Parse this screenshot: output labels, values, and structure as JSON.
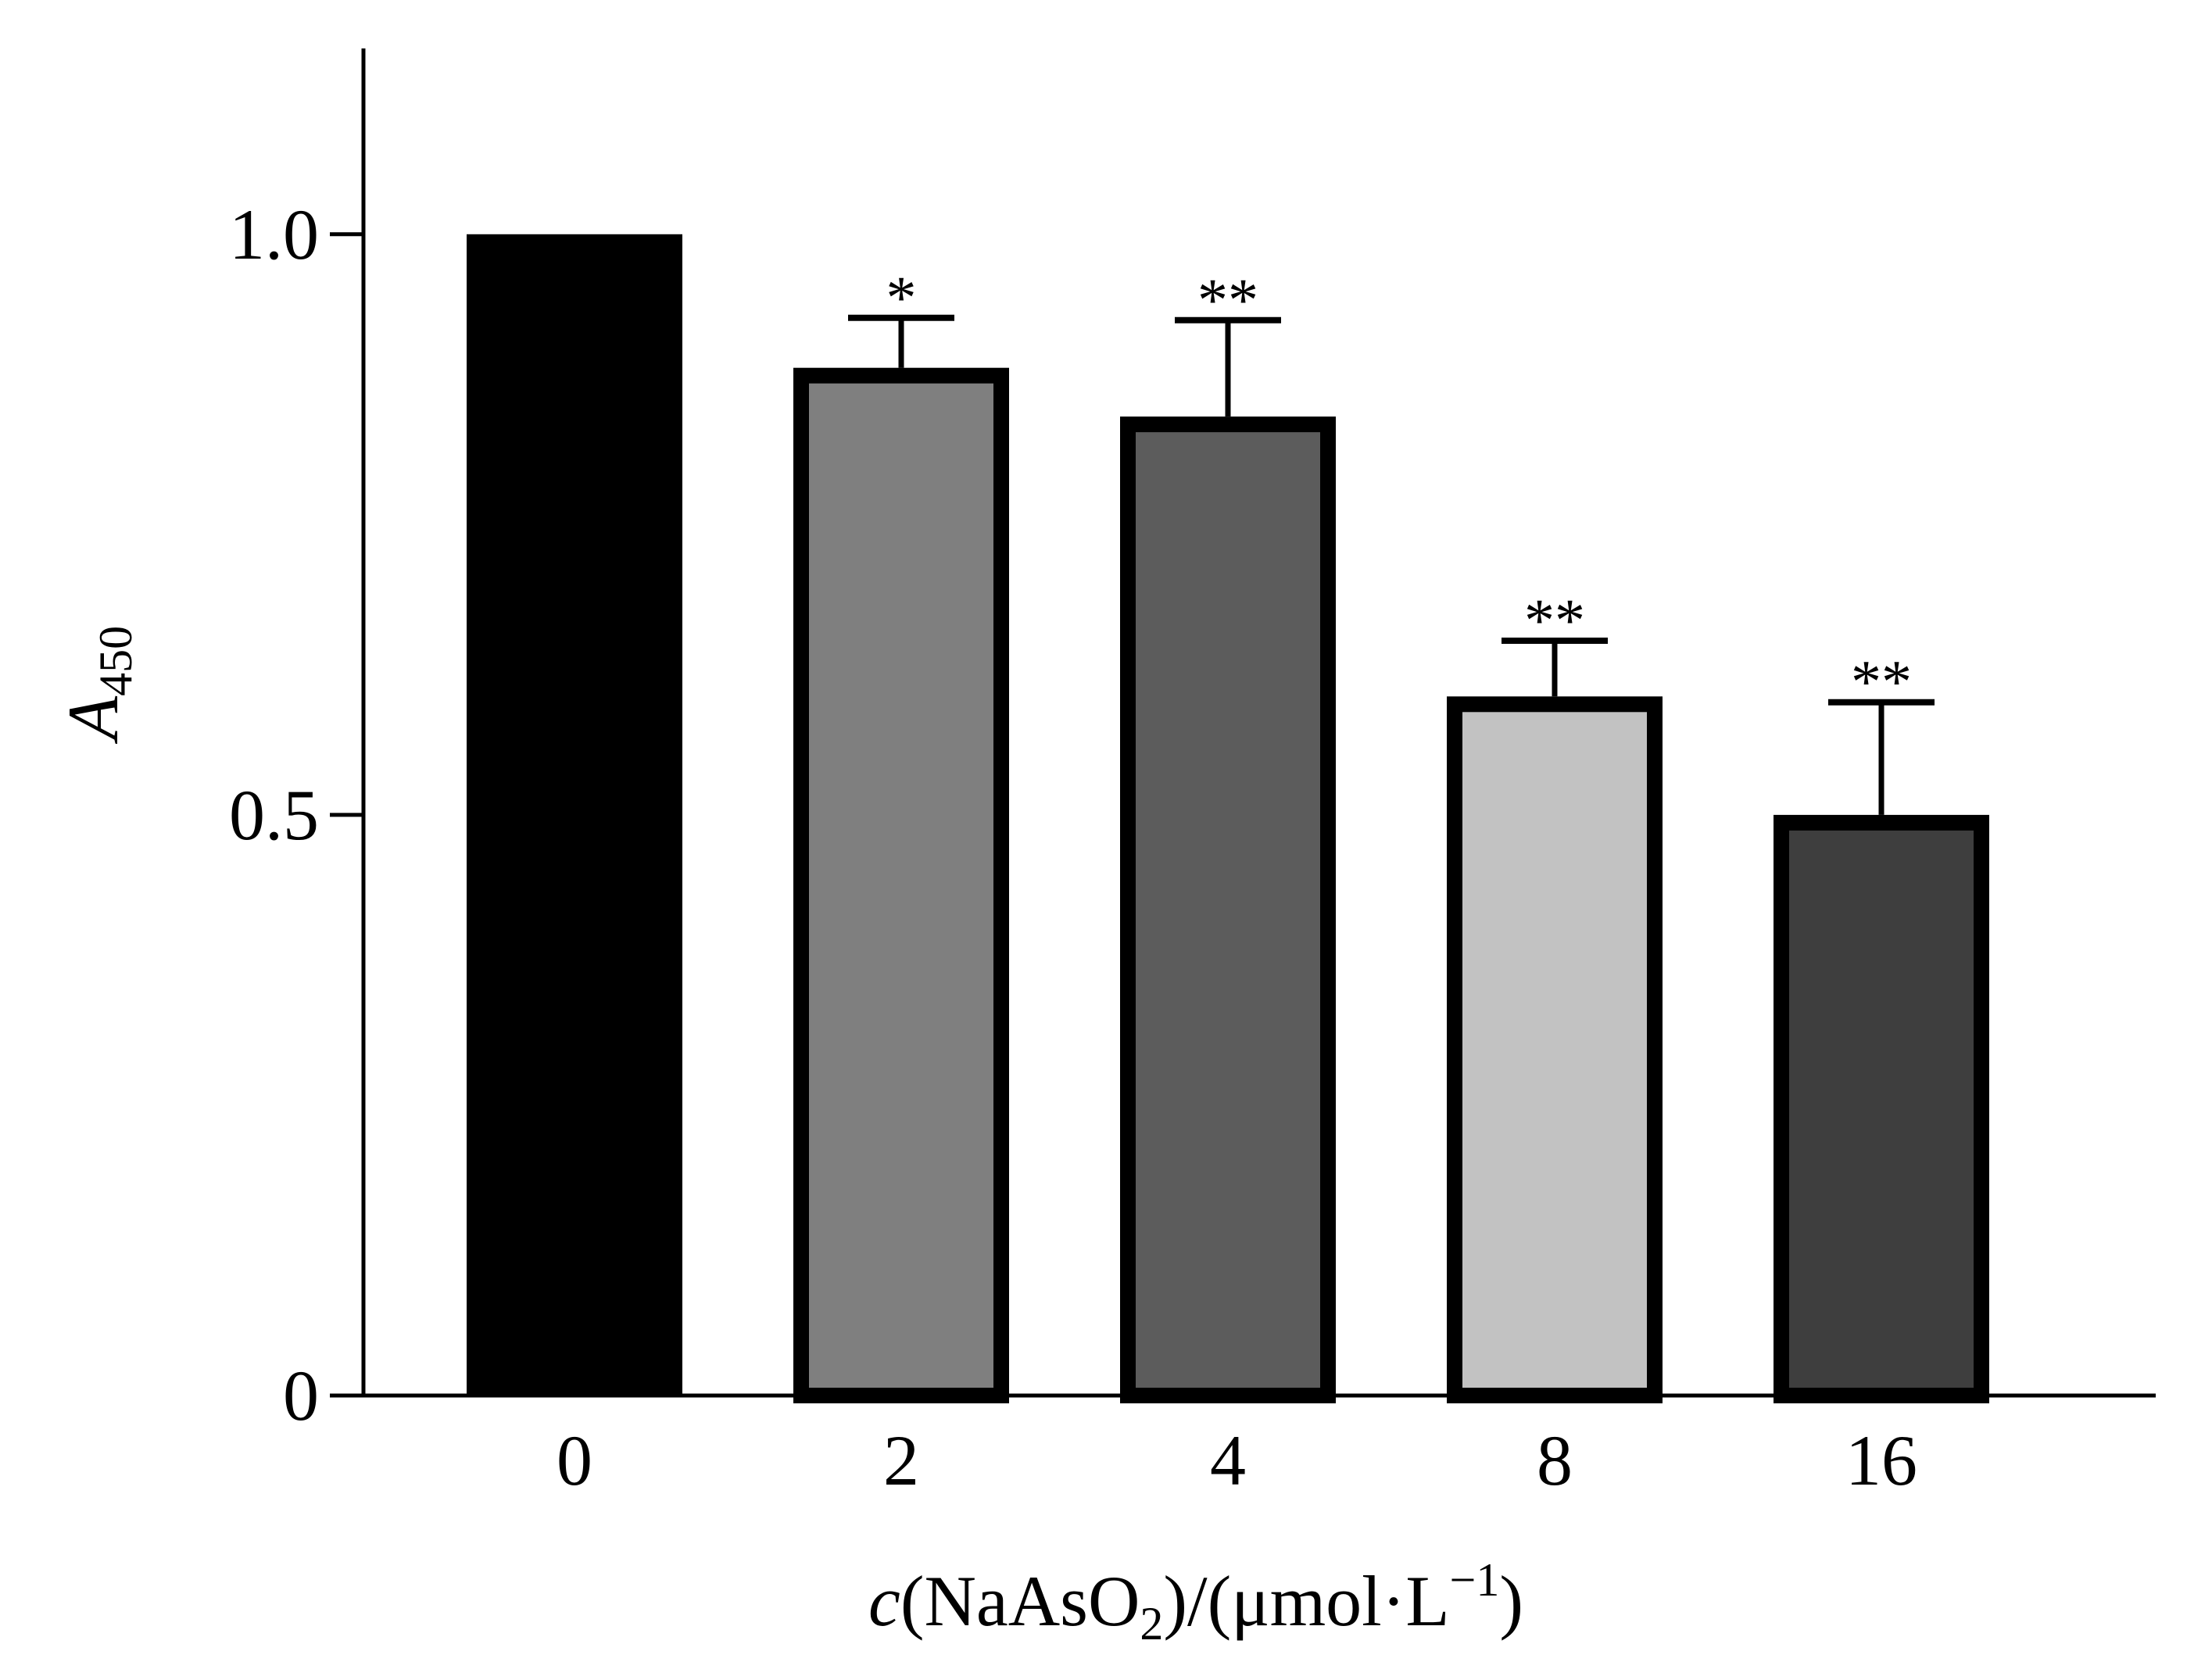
{
  "chart_data": {
    "type": "bar",
    "title": "",
    "ylabel": {
      "main": "A",
      "sub": "450"
    },
    "xlabel": {
      "var": "c",
      "open": "(NaAsO",
      "sub": "2",
      "rest": ")/(μmol·L",
      "sup": "−1",
      "close": ")"
    },
    "categories": [
      "0",
      "2",
      "4",
      "8",
      "16"
    ],
    "values": [
      1.0,
      0.885,
      0.843,
      0.602,
      0.5
    ],
    "errors": [
      0,
      0.043,
      0.083,
      0.048,
      0.097
    ],
    "significance": [
      "",
      "*",
      "**",
      "**",
      "**"
    ],
    "colors": [
      "#000000",
      "#7f7f7f",
      "#5c5c5c",
      "#c2c2c2",
      "#3e3e3e"
    ],
    "ylim": [
      0,
      1.16
    ],
    "yticks": [
      0,
      0.5,
      1.0
    ],
    "ytick_labels": [
      "0",
      "0.5",
      "1.0"
    ],
    "grid": false,
    "legend": "none"
  }
}
